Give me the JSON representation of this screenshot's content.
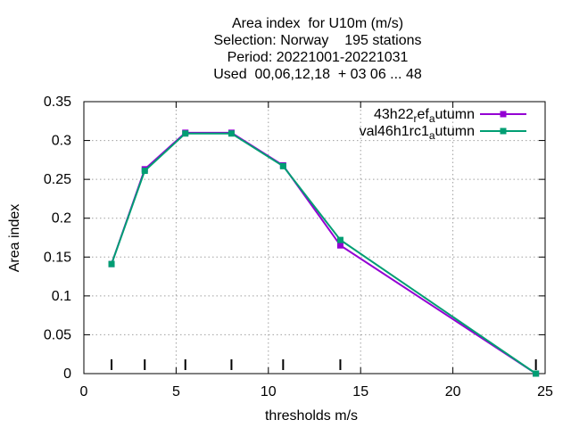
{
  "chart_data": {
    "type": "line",
    "title_lines": [
      "Area index  for U10m (m/s)",
      "Selection: Norway    195 stations",
      "Period: 20221001-20221031",
      "Used  00,06,12,18  + 03 06 ... 48"
    ],
    "xlabel": "thresholds m/s",
    "ylabel": "Area index",
    "xlim": [
      0,
      25
    ],
    "ylim": [
      0,
      0.35
    ],
    "xticks": [
      0,
      5,
      10,
      15,
      20,
      25
    ],
    "yticks": [
      0,
      0.05,
      0.1,
      0.15,
      0.2,
      0.25,
      0.3,
      0.35
    ],
    "grid": true,
    "legend_position": "top-right",
    "threshold_markers": [
      1.5,
      3.3,
      5.5,
      8.0,
      10.8,
      13.9,
      24.5
    ],
    "series": [
      {
        "legend": {
          "a": "43h22",
          "sub1": "r",
          "b": "ef",
          "sub2": "a",
          "c": "utumn"
        },
        "color": "#9400d3",
        "x": [
          1.5,
          3.3,
          5.5,
          8.0,
          10.8,
          13.9,
          24.5
        ],
        "y": [
          0.141,
          0.263,
          0.31,
          0.31,
          0.268,
          0.165,
          0.0
        ]
      },
      {
        "legend": {
          "a": "val46h1rc1",
          "sub1": "",
          "b": "",
          "sub2": "a",
          "c": "utumn"
        },
        "color": "#009e73",
        "x": [
          1.5,
          3.3,
          5.5,
          8.0,
          10.8,
          13.9,
          24.5
        ],
        "y": [
          0.141,
          0.261,
          0.309,
          0.309,
          0.267,
          0.172,
          0.0
        ]
      }
    ]
  }
}
